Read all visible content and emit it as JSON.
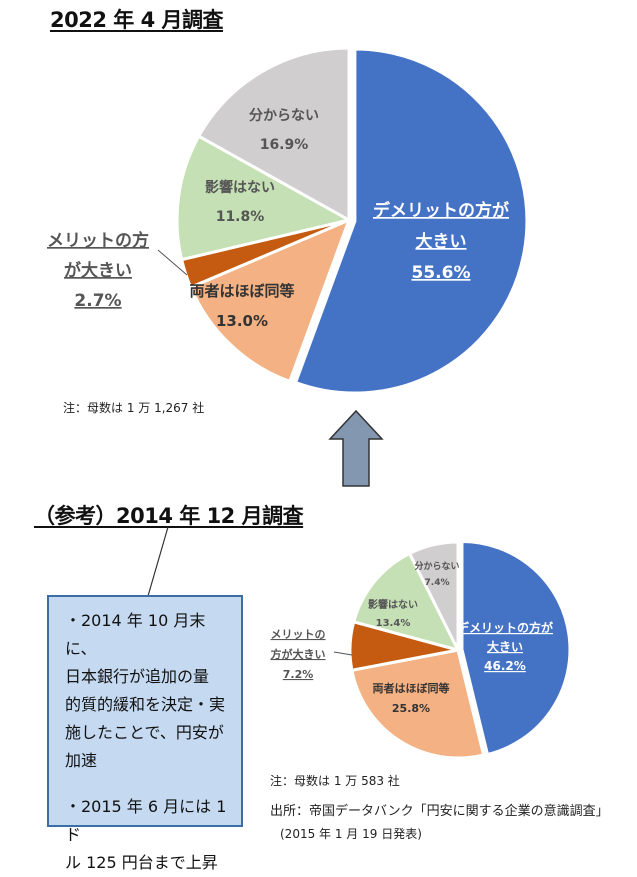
{
  "title_2022": "2022 年 4 月調査",
  "title_2014": "（参考）2014 年 12 月調査",
  "note_2022": "注：母数は 1 万 1,267 社",
  "note_2014": "注：母数は 1 万 583 社",
  "source": "出所：帝国データバンク「円安に関する企業の意識調査」",
  "source_date": "(2015 年 1 月 19 日発表)",
  "callout": {
    "line1": "・2014 年 10 月末に、",
    "line2": "日本銀行が追加の量",
    "line3": "的質的緩和を決定・実",
    "line4": "施したことで、円安が",
    "line5": "加速",
    "line6": "・2015 年 6 月には 1 ド",
    "line7": "ル 125 円台まで上昇"
  },
  "colors": {
    "demerit": "#4472c4",
    "both": "#f4b183",
    "merit": "#c55a11",
    "no_effect": "#c5e0b4",
    "unknown": "#d0cece",
    "arrow": "#8497b0"
  },
  "chart_data": [
    {
      "type": "pie",
      "title": "2022 年 4 月調査",
      "slices": [
        {
          "lines": [
            "デメリットの方が",
            "大きい"
          ],
          "value": 55.6,
          "label": "55.6%",
          "color": "#4472c4"
        },
        {
          "lines": [
            "両者はほぼ同等"
          ],
          "value": 13.0,
          "label": "13.0%",
          "color": "#f4b183"
        },
        {
          "lines": [
            "メリットの方",
            "が大きい"
          ],
          "value": 2.7,
          "label": "2.7%",
          "color": "#c55a11"
        },
        {
          "lines": [
            "影響はない"
          ],
          "value": 11.8,
          "label": "11.8%",
          "color": "#c5e0b4"
        },
        {
          "lines": [
            "分からない"
          ],
          "value": 16.9,
          "label": "16.9%",
          "color": "#d0cece"
        }
      ]
    },
    {
      "type": "pie",
      "title": "（参考）2014 年 12 月調査",
      "slices": [
        {
          "lines": [
            "デメリットの方が",
            "大きい"
          ],
          "value": 46.2,
          "label": "46.2%",
          "color": "#4472c4"
        },
        {
          "lines": [
            "両者はほぼ同等"
          ],
          "value": 25.8,
          "label": "25.8%",
          "color": "#f4b183"
        },
        {
          "lines": [
            "メリットの",
            "方が大きい"
          ],
          "value": 7.2,
          "label": "7.2%",
          "color": "#c55a11"
        },
        {
          "lines": [
            "影響はない"
          ],
          "value": 13.4,
          "label": "13.4%",
          "color": "#c5e0b4"
        },
        {
          "lines": [
            "分からない"
          ],
          "value": 7.4,
          "label": "7.4%",
          "color": "#d0cece"
        }
      ]
    }
  ]
}
